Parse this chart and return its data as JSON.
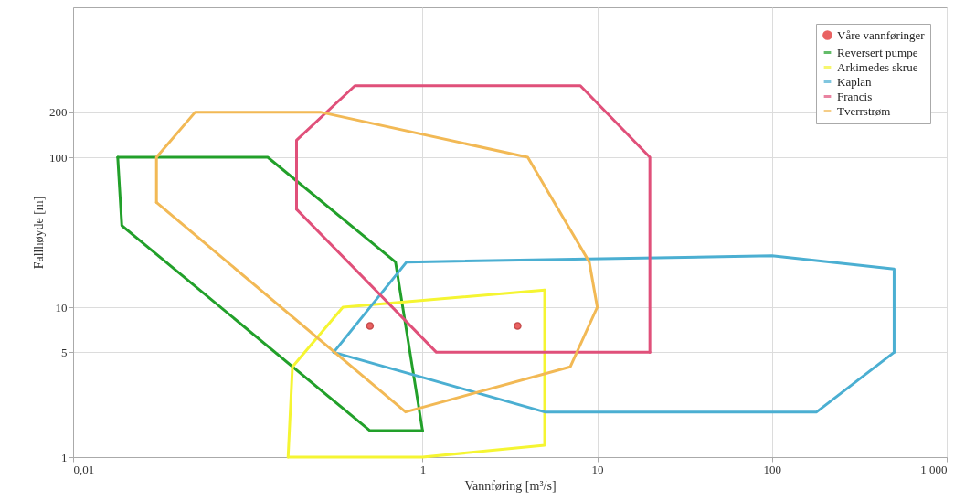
{
  "chart_data": {
    "type": "line",
    "xlabel": "Vannføring [m³/s]",
    "ylabel": "Fallhøyde [m]",
    "log": "xy",
    "grid": true,
    "legend": "top right",
    "line_style": "solid",
    "xlim": [
      0.01,
      1000
    ],
    "xticks": [
      {
        "value": 0.01,
        "label": "0,01"
      },
      1,
      10,
      100,
      {
        "value": 1000,
        "label": "1 000"
      }
    ],
    "ylim": [
      1,
      1000
    ],
    "yticks": [
      1,
      5,
      10,
      100,
      200
    ],
    "series": [
      {
        "name": "Våre vannføringer",
        "type": "scatter",
        "marker": "circle",
        "color": "#e02020",
        "x": [
          0.5,
          3.5
        ],
        "values": [
          7.5,
          7.5
        ]
      },
      {
        "name": "Reversert pumpe",
        "color": "#22a02a",
        "x": [
          0.018,
          0.13,
          0.7,
          1
        ],
        "values": [
          100,
          100,
          20,
          1.5
        ]
      },
      {
        "color": "#22a02a",
        "x": [
          0.018,
          0.019,
          0.5,
          1
        ],
        "values": [
          100,
          35,
          1.5,
          1.5
        ]
      },
      {
        "name": "Arkimedes skrue",
        "color": "#f5f532",
        "x": [
          0.17,
          1,
          5,
          5
        ],
        "values": [
          1,
          1,
          1.2,
          13
        ]
      },
      {
        "color": "#f5f532",
        "x": [
          0.17,
          0.18,
          0.35,
          5
        ],
        "values": [
          1,
          4,
          10,
          13
        ]
      },
      {
        "name": "Kaplan",
        "color": "#4bafd2",
        "x": [
          0.31,
          0.81,
          100,
          500,
          500
        ],
        "values": [
          5,
          20,
          22,
          18,
          5
        ]
      },
      {
        "color": "#4bafd2",
        "x": [
          0.31,
          5,
          180,
          500
        ],
        "values": [
          5,
          2,
          2,
          5
        ]
      },
      {
        "name": "Francis",
        "color": "#e0507a",
        "x": [
          0.19,
          0.19,
          0.41,
          8,
          20,
          20
        ],
        "values": [
          45,
          130,
          300,
          300,
          100,
          5
        ]
      },
      {
        "color": "#e0507a",
        "x": [
          0.19,
          1.2,
          20
        ],
        "values": [
          45,
          5,
          5
        ]
      },
      {
        "name": "Tverrstrøm",
        "color": "#f2b955",
        "x": [
          0.03,
          0.03,
          0.05,
          0.26,
          4,
          9,
          10
        ],
        "values": [
          50,
          100,
          200,
          200,
          100,
          20,
          10
        ]
      },
      {
        "color": "#f2b955",
        "x": [
          0.03,
          0.8,
          7,
          10
        ],
        "values": [
          50,
          2,
          4,
          10
        ]
      }
    ]
  }
}
